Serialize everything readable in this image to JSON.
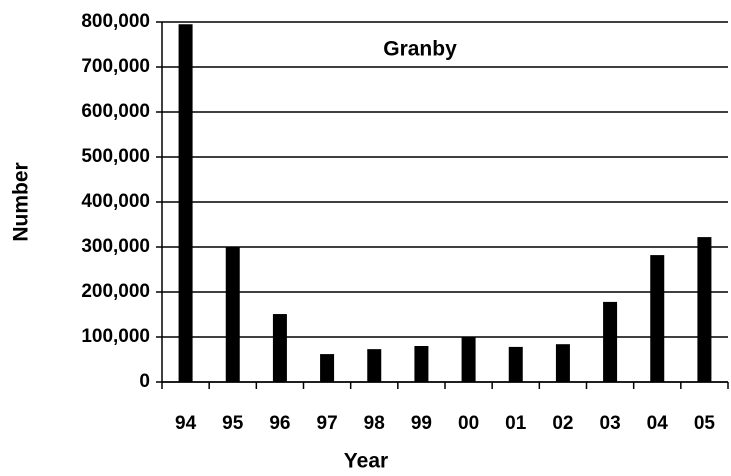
{
  "chart_data": {
    "type": "bar",
    "title": "Granby",
    "xlabel": "Year",
    "ylabel": "Number",
    "categories": [
      "94",
      "95",
      "96",
      "97",
      "98",
      "99",
      "00",
      "01",
      "02",
      "03",
      "04",
      "05"
    ],
    "values": [
      795000,
      300000,
      151000,
      62000,
      73000,
      80000,
      100000,
      78000,
      84000,
      178000,
      282000,
      322000
    ],
    "color": "#000000",
    "ylim": [
      0,
      800000
    ],
    "yticks": [
      0,
      {
        "value": 100000,
        "label": "100,000"
      },
      {
        "value": 200000,
        "label": "200,000"
      },
      {
        "value": 300000,
        "label": "300,000"
      },
      {
        "value": 400000,
        "label": "400,000"
      },
      {
        "value": 500000,
        "label": "500,000"
      },
      {
        "value": 600000,
        "label": "600,000"
      },
      {
        "value": 700000,
        "label": "700,000"
      },
      {
        "value": 800000,
        "label": "800,000"
      }
    ],
    "grid": true
  }
}
